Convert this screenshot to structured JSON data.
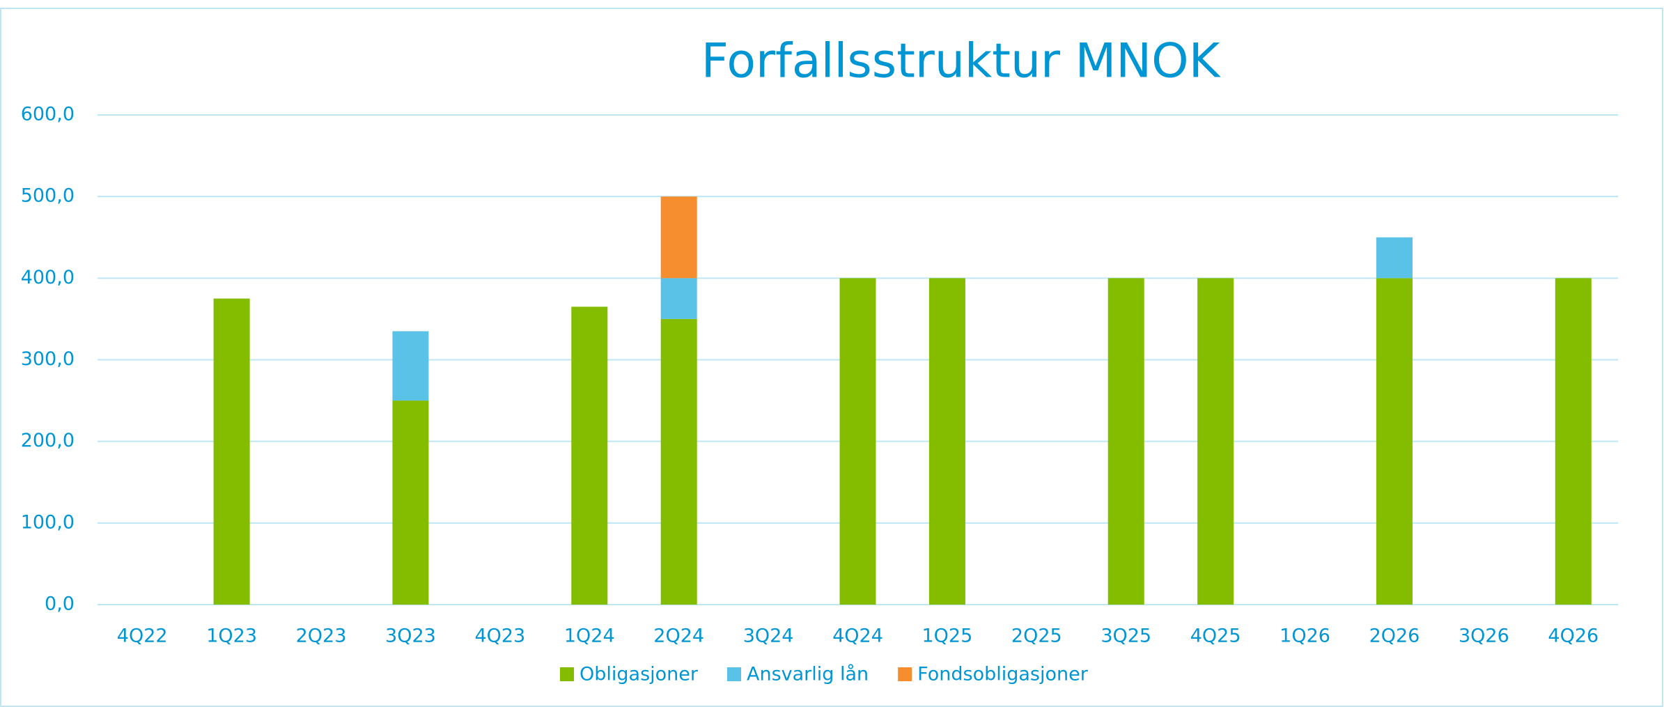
{
  "chart_data": {
    "type": "bar",
    "stacked": true,
    "title": "Forfallsstruktur MNOK",
    "categories": [
      "4Q22",
      "1Q23",
      "2Q23",
      "3Q23",
      "4Q23",
      "1Q24",
      "2Q24",
      "3Q24",
      "4Q24",
      "1Q25",
      "2Q25",
      "3Q25",
      "4Q25",
      "1Q26",
      "2Q26",
      "3Q26",
      "4Q26"
    ],
    "series": [
      {
        "name": "Obligasjoner",
        "color": "#84bd00",
        "values": [
          null,
          375,
          null,
          250,
          null,
          365,
          350,
          null,
          400,
          400,
          null,
          400,
          400,
          null,
          400,
          null,
          400
        ]
      },
      {
        "name": "Ansvarlig lån",
        "color": "#5bc2e7",
        "values": [
          null,
          null,
          null,
          85,
          null,
          null,
          50,
          null,
          null,
          null,
          null,
          null,
          null,
          null,
          50,
          null,
          null
        ]
      },
      {
        "name": "Fondsobligasjoner",
        "color": "#f68d2e",
        "values": [
          null,
          null,
          null,
          null,
          null,
          null,
          100,
          null,
          null,
          null,
          null,
          null,
          null,
          null,
          null,
          null,
          null
        ]
      }
    ],
    "ylim": [
      0,
      600
    ],
    "yticks": [
      {
        "value": 0,
        "label": "0,0"
      },
      {
        "value": 100,
        "label": "100,0"
      },
      {
        "value": 200,
        "label": "200,0"
      },
      {
        "value": 300,
        "label": "300,0"
      },
      {
        "value": 400,
        "label": "400,0"
      },
      {
        "value": 500,
        "label": "500,0"
      },
      {
        "value": 600,
        "label": "600,0"
      }
    ],
    "grid": true,
    "legend": "bottom"
  }
}
